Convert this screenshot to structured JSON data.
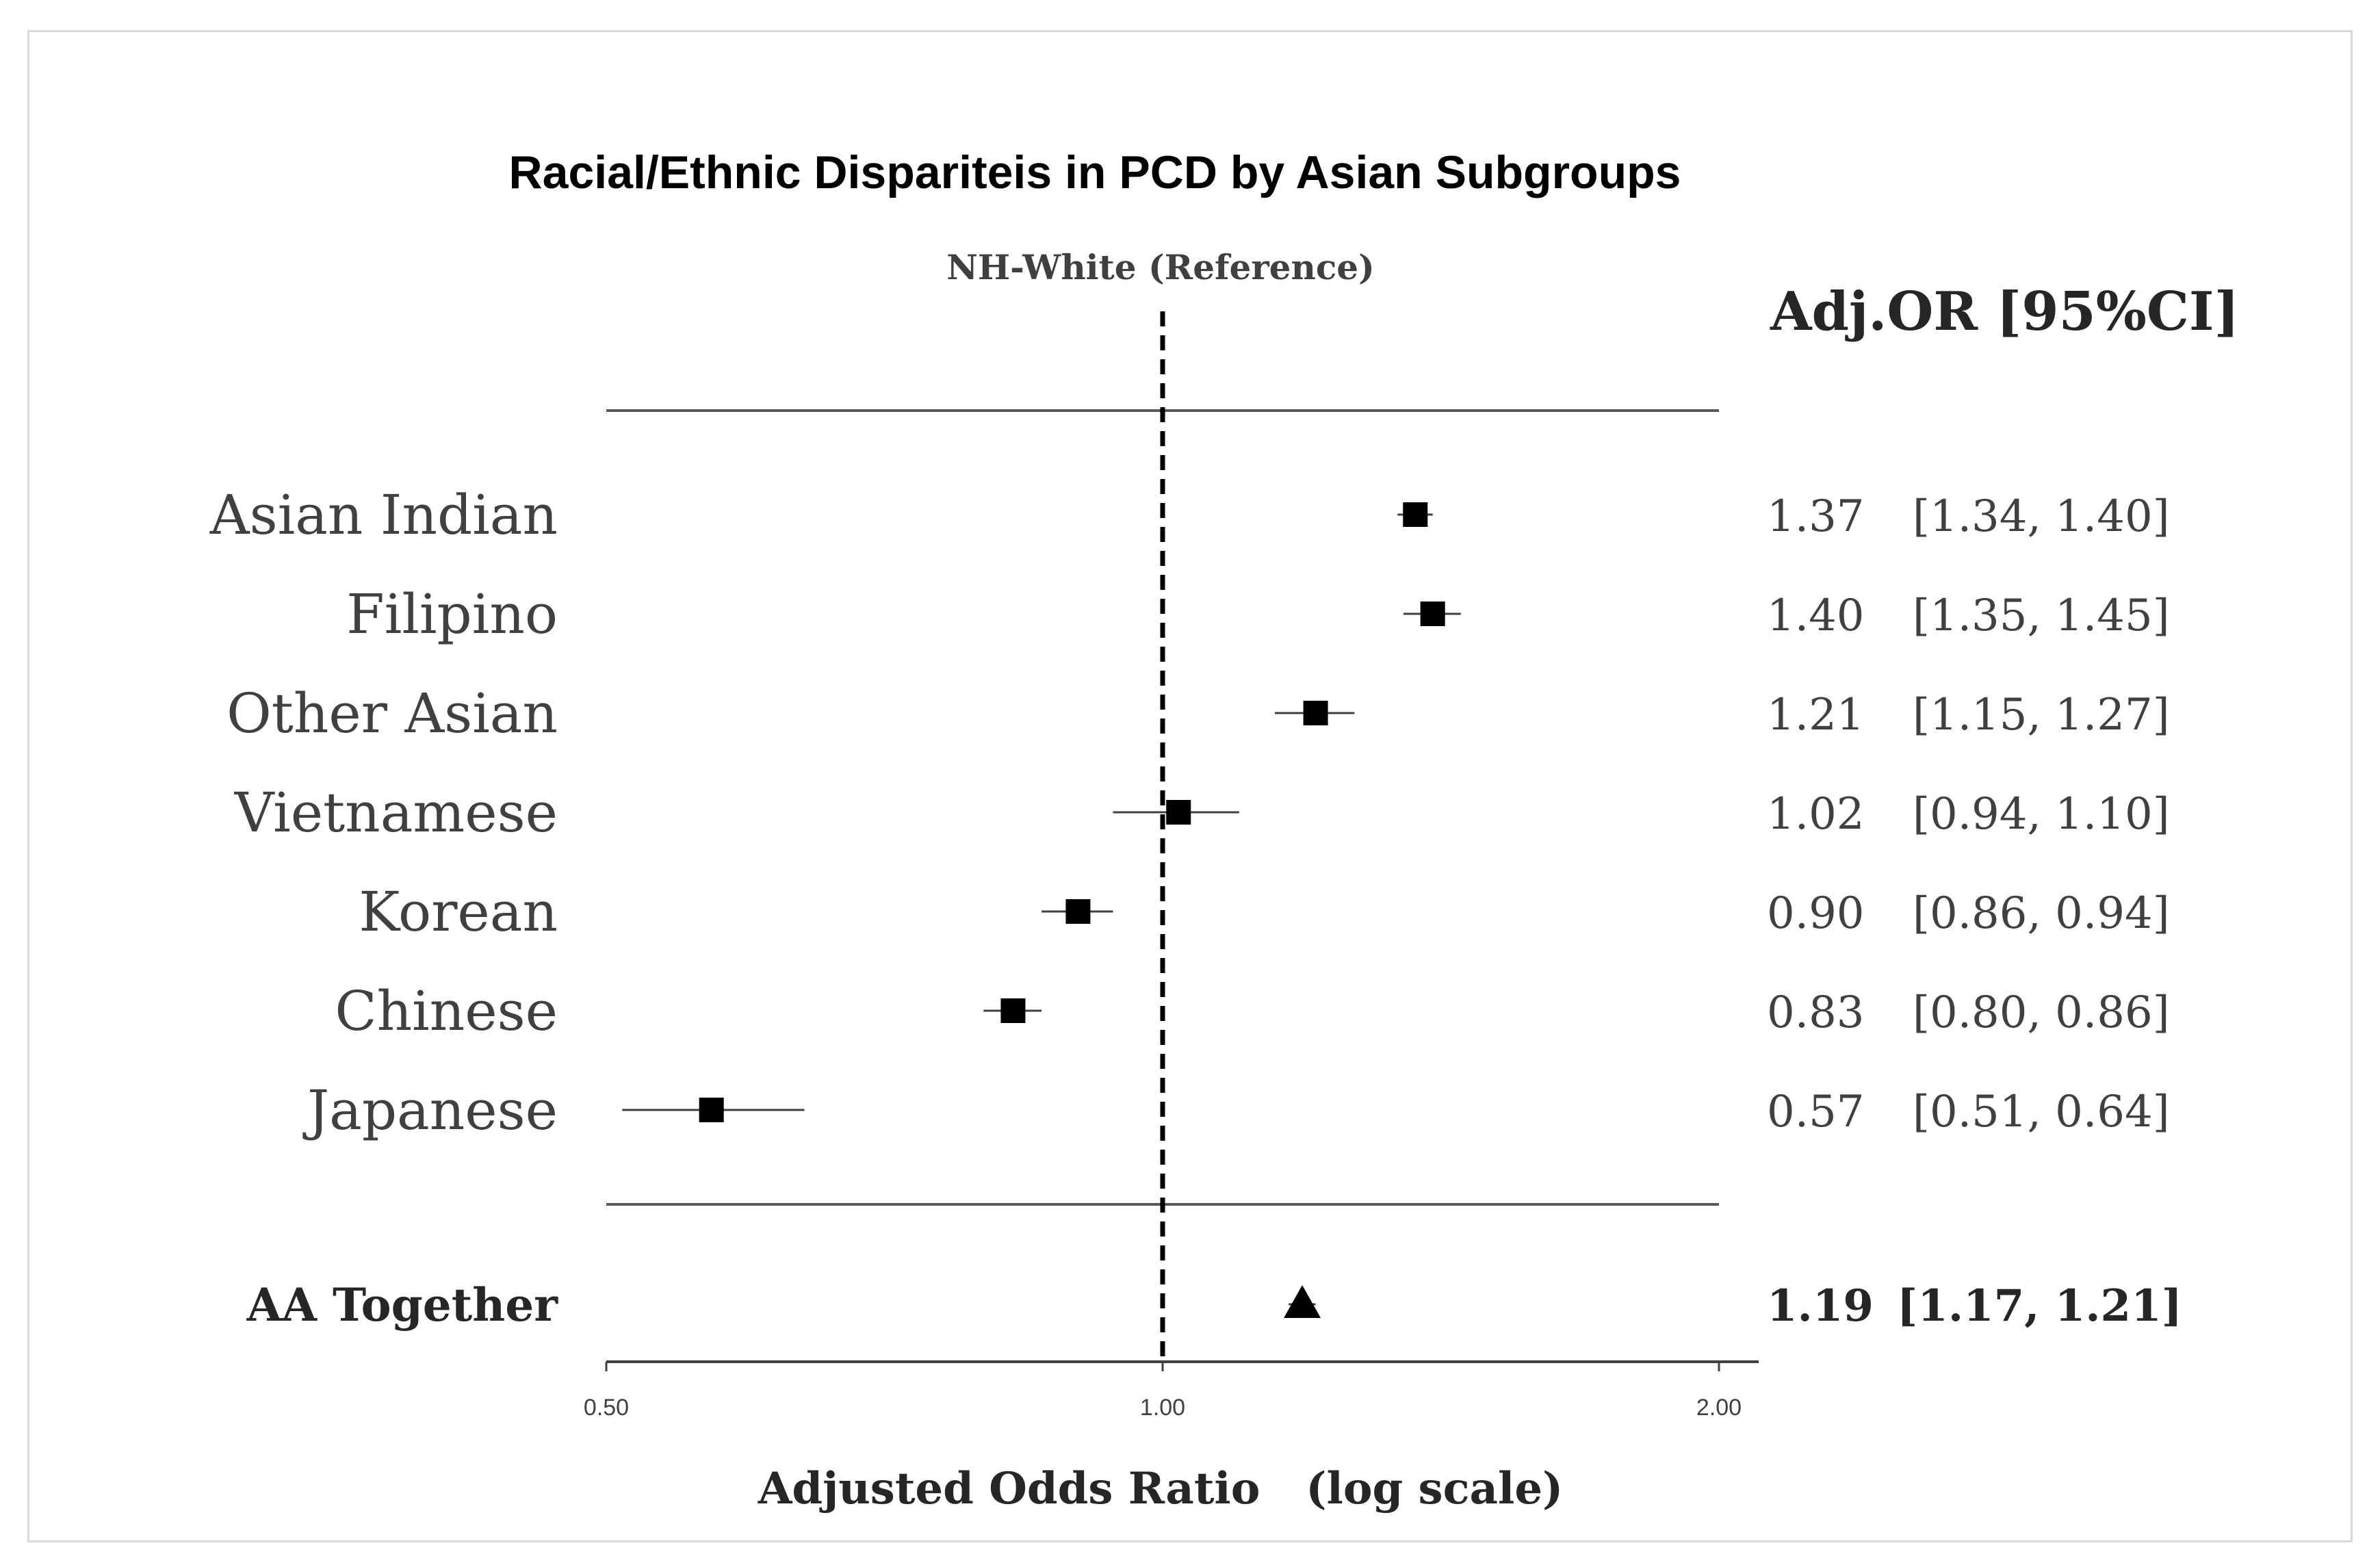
{
  "chart_data": {
    "type": "forest",
    "title": "Racial/Ethnic Dispariteis in PCD by Asian Subgroups",
    "reference_label": "NH-White (Reference)",
    "reference_value": 1.0,
    "estimate_header": "Adj.OR [95%CI]",
    "xlabel": "Adjusted Odds Ratio   (log scale)",
    "x_scale": "log",
    "xlim": [
      0.5,
      2.0
    ],
    "x_ticks": [
      "0.50",
      "1.00",
      "2.00"
    ],
    "rows": [
      {
        "label": "Asian Indian",
        "or": 1.37,
        "lo": 1.34,
        "hi": 1.4,
        "or_text": "1.37",
        "ci_text": "[1.34, 1.40]"
      },
      {
        "label": "Filipino",
        "or": 1.4,
        "lo": 1.35,
        "hi": 1.45,
        "or_text": "1.40",
        "ci_text": "[1.35, 1.45]"
      },
      {
        "label": "Other Asian",
        "or": 1.21,
        "lo": 1.15,
        "hi": 1.27,
        "or_text": "1.21",
        "ci_text": "[1.15, 1.27]"
      },
      {
        "label": "Vietnamese",
        "or": 1.02,
        "lo": 0.94,
        "hi": 1.1,
        "or_text": "1.02",
        "ci_text": "[0.94, 1.10]"
      },
      {
        "label": "Korean",
        "or": 0.9,
        "lo": 0.86,
        "hi": 0.94,
        "or_text": "0.90",
        "ci_text": "[0.86, 0.94]"
      },
      {
        "label": "Chinese",
        "or": 0.83,
        "lo": 0.8,
        "hi": 0.86,
        "or_text": "0.83",
        "ci_text": "[0.80, 0.86]"
      },
      {
        "label": "Japanese",
        "or": 0.57,
        "lo": 0.51,
        "hi": 0.64,
        "or_text": "0.57",
        "ci_text": "[0.51, 0.64]"
      }
    ],
    "summary": {
      "label": "AA Together",
      "or": 1.19,
      "lo": 1.17,
      "hi": 1.21,
      "or_text": "1.19",
      "ci_text": "[1.17, 1.21]"
    }
  }
}
